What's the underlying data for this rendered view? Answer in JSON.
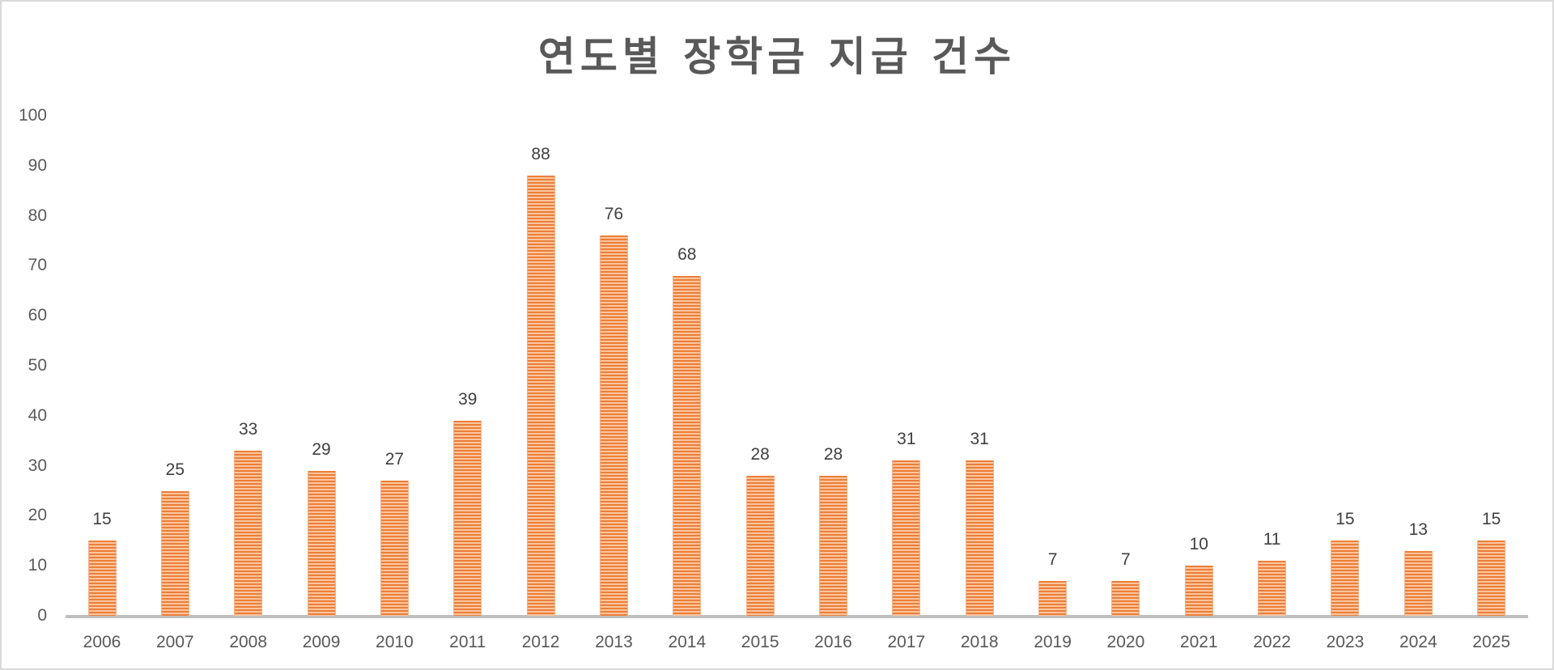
{
  "chart_data": {
    "type": "bar",
    "title": "연도별 장학금 지급 건수",
    "xlabel": "",
    "ylabel": "",
    "categories": [
      "2006",
      "2007",
      "2008",
      "2009",
      "2010",
      "2011",
      "2012",
      "2013",
      "2014",
      "2015",
      "2016",
      "2017",
      "2018",
      "2019",
      "2020",
      "2021",
      "2022",
      "2023",
      "2024",
      "2025"
    ],
    "values": [
      15,
      25,
      33,
      29,
      27,
      39,
      88,
      76,
      68,
      28,
      28,
      31,
      31,
      7,
      7,
      10,
      11,
      15,
      13,
      15
    ],
    "ylim": [
      0,
      100
    ],
    "yticks": [
      "0",
      "10",
      "20",
      "30",
      "40",
      "50",
      "60",
      "70",
      "80",
      "90",
      "100"
    ],
    "grid": false,
    "legend": "none",
    "data_labels": true,
    "bar_color": "#ED7D31",
    "bar_pattern": "horizontal-stripes"
  }
}
